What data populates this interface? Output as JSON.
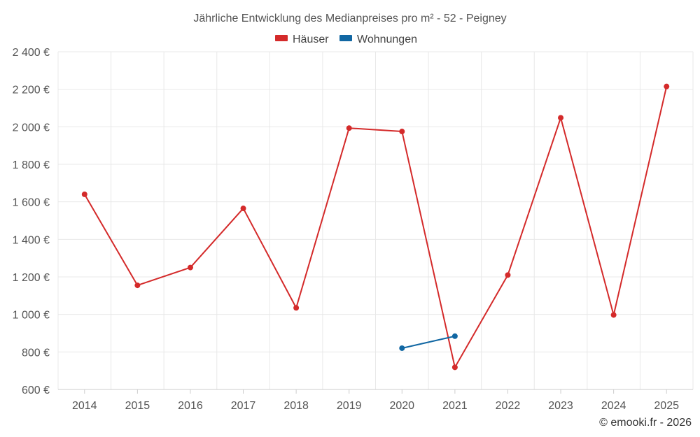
{
  "chart_data": {
    "type": "line",
    "title": "Jährliche Entwicklung des Medianpreises pro m² - 52 - Peigney",
    "categories": [
      "2014",
      "2015",
      "2016",
      "2017",
      "2018",
      "2019",
      "2020",
      "2021",
      "2022",
      "2023",
      "2024",
      "2025"
    ],
    "series": [
      {
        "name": "Häuser",
        "color": "#d42a2a",
        "values": [
          1640,
          1155,
          1250,
          1565,
          1035,
          1993,
          1975,
          718,
          1210,
          2048,
          997,
          2215
        ]
      },
      {
        "name": "Wohnungen",
        "color": "#1167a3",
        "values": [
          null,
          null,
          null,
          null,
          null,
          null,
          820,
          884,
          null,
          null,
          null,
          null
        ]
      }
    ],
    "ylim": [
      600,
      2400
    ],
    "yticks": [
      600,
      800,
      1000,
      1200,
      1400,
      1600,
      1800,
      2000,
      2200,
      2400
    ],
    "ytick_labels": [
      "600 €",
      "800 €",
      "1 000 €",
      "1 200 €",
      "1 400 €",
      "1 600 €",
      "1 800 €",
      "2 000 €",
      "2 200 €",
      "2 400 €"
    ],
    "xlabel": "",
    "ylabel": "",
    "grid": true,
    "legend_position": "top-center"
  },
  "credit": "© emooki.fr - 2026"
}
